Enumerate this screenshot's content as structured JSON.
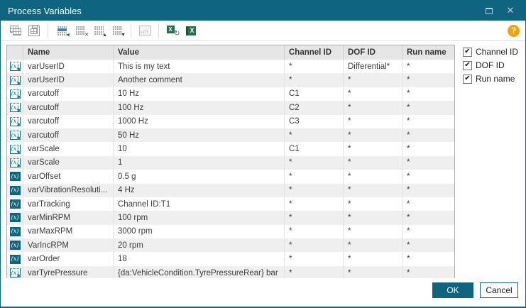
{
  "window": {
    "title": "Process Variables"
  },
  "toolbar": {
    "ldt_label": "LDT",
    "help_glyph": "?",
    "excel_glyph": "X",
    "refresh_glyph": "↻",
    "add_glyph": "◄",
    "delete_glyph": "✕",
    "up_glyph": "▲",
    "down_glyph": "▼"
  },
  "icons": {
    "variable_glyph": "(x)",
    "check_glyph": "✔"
  },
  "table": {
    "columns": {
      "icon": "",
      "name": "Name",
      "value": "Value",
      "channel_id": "Channel ID",
      "dof_id": "DOF ID",
      "run_name": "Run name"
    },
    "rows": [
      {
        "icon": "user-variable",
        "name": "varUserID",
        "value": "This is my text",
        "channel_id": "*",
        "dof_id": "Differential*",
        "run_name": "*"
      },
      {
        "icon": "user-variable",
        "name": "varUserID",
        "value": "Another comment",
        "channel_id": "*",
        "dof_id": "*",
        "run_name": "*"
      },
      {
        "icon": "user-variable",
        "name": "varcutoff",
        "value": "10 Hz",
        "channel_id": "C1",
        "dof_id": "*",
        "run_name": "*"
      },
      {
        "icon": "user-variable",
        "name": "varcutoff",
        "value": "100 Hz",
        "channel_id": "C2",
        "dof_id": "*",
        "run_name": "*"
      },
      {
        "icon": "user-variable",
        "name": "varcutoff",
        "value": "1000 Hz",
        "channel_id": "C3",
        "dof_id": "*",
        "run_name": "*"
      },
      {
        "icon": "user-variable",
        "name": "varcutoff",
        "value": "50 Hz",
        "channel_id": "*",
        "dof_id": "*",
        "run_name": "*"
      },
      {
        "icon": "user-variable",
        "name": "varScale",
        "value": "10",
        "channel_id": "C1",
        "dof_id": "*",
        "run_name": "*"
      },
      {
        "icon": "user-variable",
        "name": "varScale",
        "value": "1",
        "channel_id": "*",
        "dof_id": "*",
        "run_name": "*"
      },
      {
        "icon": "variable",
        "name": "varOffset",
        "value": "0.5 g",
        "channel_id": "*",
        "dof_id": "*",
        "run_name": "*"
      },
      {
        "icon": "variable",
        "name": "varVibrationResoluti...",
        "value": "4 Hz",
        "channel_id": "*",
        "dof_id": "*",
        "run_name": "*"
      },
      {
        "icon": "variable",
        "name": "varTracking",
        "value": "Channel ID:T1",
        "channel_id": "*",
        "dof_id": "*",
        "run_name": "*"
      },
      {
        "icon": "variable",
        "name": "varMinRPM",
        "value": "100 rpm",
        "channel_id": "*",
        "dof_id": "*",
        "run_name": "*"
      },
      {
        "icon": "variable",
        "name": "varMaxRPM",
        "value": "3000 rpm",
        "channel_id": "*",
        "dof_id": "*",
        "run_name": "*"
      },
      {
        "icon": "variable",
        "name": "VarIncRPM",
        "value": "20 rpm",
        "channel_id": "*",
        "dof_id": "*",
        "run_name": "*"
      },
      {
        "icon": "variable",
        "name": "varOrder",
        "value": "18",
        "channel_id": "*",
        "dof_id": "*",
        "run_name": "*"
      },
      {
        "icon": "user-variable",
        "name": "varTyrePressure",
        "value": "{da:VehicleCondition.TyrePressureRear} bar",
        "channel_id": "*",
        "dof_id": "*",
        "run_name": "*"
      }
    ]
  },
  "column_toggles": [
    {
      "label": "Channel ID",
      "checked": true
    },
    {
      "label": "DOF ID",
      "checked": true
    },
    {
      "label": "Run name",
      "checked": true
    }
  ],
  "footer": {
    "ok_label": "OK",
    "cancel_label": "Cancel"
  },
  "colors": {
    "accent": "#0f6480",
    "help_orange": "#f0a30a",
    "excel_green": "#217346",
    "row_alt": "#efefef"
  }
}
